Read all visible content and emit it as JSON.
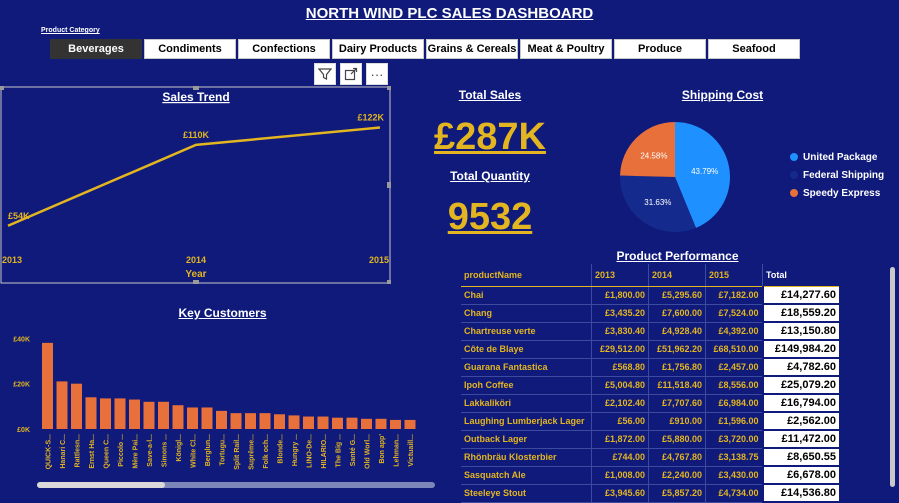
{
  "dashboard": {
    "title": "NORTH WIND PLC SALES DASHBOARD"
  },
  "slicer": {
    "label": "Product Category",
    "items": [
      {
        "label": "Beverages",
        "active": true
      },
      {
        "label": "Condiments",
        "active": false
      },
      {
        "label": "Confections",
        "active": false
      },
      {
        "label": "Dairy Products",
        "active": false
      },
      {
        "label": "Grains & Cereals",
        "active": false
      },
      {
        "label": "Meat & Poultry",
        "active": false
      },
      {
        "label": "Produce",
        "active": false
      },
      {
        "label": "Seafood",
        "active": false
      }
    ]
  },
  "toolbar": {
    "filter_icon": "funnel-icon",
    "focus_icon": "focus-mode-icon",
    "more_label": "···"
  },
  "kpi": {
    "total_sales_label": "Total Sales",
    "total_sales_value": "£287K",
    "total_quantity_label": "Total Quantity",
    "total_quantity_value": "9532"
  },
  "chart_data": [
    {
      "id": "sales-trend",
      "type": "line",
      "title": "Sales Trend",
      "xlabel": "Year",
      "x": [
        "2013",
        "2014",
        "2015"
      ],
      "y": [
        54,
        110,
        122
      ],
      "data_labels": [
        "£54K",
        "£110K",
        "£122K"
      ],
      "color": "#e3b520"
    },
    {
      "id": "shipping-cost",
      "type": "pie",
      "title": "Shipping Cost",
      "labels": [
        "United Package",
        "Federal Shipping",
        "Speedy Express"
      ],
      "values": [
        43.79,
        31.63,
        24.58
      ],
      "value_labels": [
        "43.79%",
        "31.63%",
        "24.58%"
      ],
      "colors": [
        "#1e90ff",
        "#142a8c",
        "#e8703a"
      ],
      "legend": "right"
    },
    {
      "id": "key-customers",
      "type": "bar",
      "title": "Key Customers",
      "categories": [
        "QUICK-S...",
        "Hanari C...",
        "Rattlesn...",
        "Ernst Ha...",
        "Queen C...",
        "Piccolo ...",
        "Mère Pai...",
        "Save-a-l...",
        "Simons ...",
        "Königl...",
        "White Cl...",
        "Berglun...",
        "Tortugu...",
        "Split Rail...",
        "Suprême...",
        "Folk och...",
        "Blonde...",
        "Hungry ...",
        "LINO-De...",
        "HILARIO...",
        "The Big ...",
        "Santé G...",
        "Old Worl...",
        "Bon app'",
        "Lehman...",
        "Victuaill..."
      ],
      "values": [
        38,
        21,
        20,
        14,
        13.5,
        13.5,
        13,
        12,
        12,
        10.5,
        9.5,
        9.5,
        8,
        7,
        7,
        7,
        6.5,
        6,
        5.5,
        5.5,
        5,
        5,
        4.5,
        4.5,
        4,
        4
      ],
      "yticks": [
        "£0K",
        "£20K",
        "£40K"
      ],
      "ylim": [
        0,
        45
      ],
      "color": "#e8703a"
    }
  ],
  "performance": {
    "title": "Product Performance",
    "columns": [
      "productName",
      "2013",
      "2014",
      "2015",
      "Total"
    ],
    "rows": [
      [
        "Chai",
        "£1,800.00",
        "£5,295.60",
        "£7,182.00",
        "£14,277.60"
      ],
      [
        "Chang",
        "£3,435.20",
        "£7,600.00",
        "£7,524.00",
        "£18,559.20"
      ],
      [
        "Chartreuse verte",
        "£3,830.40",
        "£4,928.40",
        "£4,392.00",
        "£13,150.80"
      ],
      [
        "Côte de Blaye",
        "£29,512.00",
        "£51,962.20",
        "£68,510.00",
        "£149,984.20"
      ],
      [
        "Guarana Fantastica",
        "£568.80",
        "£1,756.80",
        "£2,457.00",
        "£4,782.60"
      ],
      [
        "Ipoh Coffee",
        "£5,004.80",
        "£11,518.40",
        "£8,556.00",
        "£25,079.20"
      ],
      [
        "Lakkaliköri",
        "£2,102.40",
        "£7,707.60",
        "£6,984.00",
        "£16,794.00"
      ],
      [
        "Laughing Lumberjack Lager",
        "£56.00",
        "£910.00",
        "£1,596.00",
        "£2,562.00"
      ],
      [
        "Outback Lager",
        "£1,872.00",
        "£5,880.00",
        "£3,720.00",
        "£11,472.00"
      ],
      [
        "Rhönbräu Klosterbier",
        "£744.00",
        "£4,767.80",
        "£3,138.75",
        "£8,650.55"
      ],
      [
        "Sasquatch Ale",
        "£1,008.00",
        "£2,240.00",
        "£3,430.00",
        "£6,678.00"
      ],
      [
        "Steeleye Stout",
        "£3,945.60",
        "£5,857.20",
        "£4,734.00",
        "£14,536.80"
      ]
    ]
  }
}
